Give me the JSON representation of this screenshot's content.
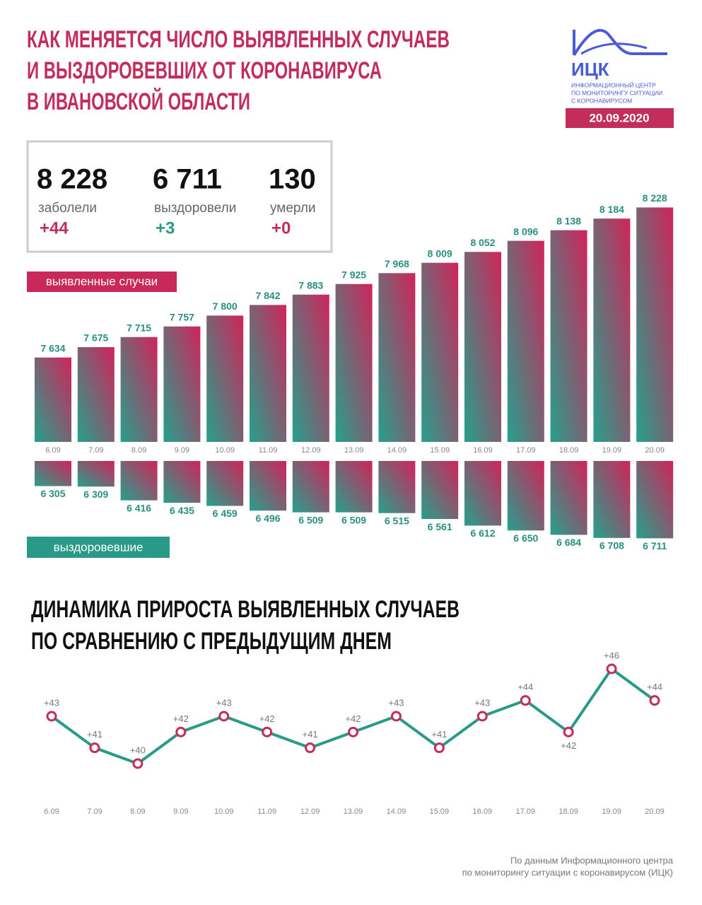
{
  "header": {
    "title": [
      "КАК МЕНЯЕТСЯ ЧИСЛО ВЫЯВЛЕННЫХ СЛУЧАЕВ",
      "И ВЫЗДОРОВЕВШИХ ОТ КОРОНАВИРУСА",
      "В ИВАНОВСКОЙ ОБЛАСТИ"
    ],
    "logo": {
      "name": "ИЦК",
      "lines": [
        "ИНФОРМАЦИОННЫЙ ЦЕНТР",
        "ПО МОНИТОРИНГУ СИТУАЦИИ",
        "С КОРОНАВИРУСОМ"
      ]
    },
    "date": "20.09.2020"
  },
  "summary": [
    {
      "value": "8 228",
      "label": "заболели",
      "change": "+44",
      "color": "#c32d5c"
    },
    {
      "value": "6 711",
      "label": "выздоровели",
      "change": "+3",
      "color": "#2a9a88"
    },
    {
      "value": "130",
      "label": "умерли",
      "change": "+0",
      "color": "#c32d5c"
    }
  ],
  "chart_data": [
    {
      "type": "bar",
      "name": "выявленные случаи",
      "color": "#c8285a",
      "gradient": [
        "#d0245a",
        "#26a08c"
      ],
      "categories": [
        "6.09",
        "7.09",
        "8.09",
        "9.09",
        "10.09",
        "11.09",
        "12.09",
        "13.09",
        "14.09",
        "15.09",
        "16.09",
        "17.09",
        "18.09",
        "19.09",
        "20.09"
      ],
      "values": [
        7634,
        7675,
        7715,
        7757,
        7800,
        7842,
        7883,
        7925,
        7968,
        8009,
        8052,
        8096,
        8138,
        8184,
        8228
      ],
      "value_labels": [
        "7 634",
        "7 675",
        "7 715",
        "7 757",
        "7 800",
        "7 842",
        "7 883",
        "7 925",
        "7 968",
        "8 009",
        "8 052",
        "8 096",
        "8 138",
        "8 184",
        "8 228"
      ],
      "ylim": [
        7300,
        8260
      ]
    },
    {
      "type": "bar",
      "name": "выздоровевшие",
      "color": "#2a9a88",
      "direction": "down",
      "gradient": [
        "#d0245a",
        "#26a08c"
      ],
      "values": [
        6305,
        6309,
        6416,
        6435,
        6459,
        6496,
        6509,
        6509,
        6515,
        6561,
        6612,
        6650,
        6684,
        6708,
        6711
      ],
      "value_labels": [
        "6 305",
        "6 309",
        "6 416",
        "6 435",
        "6 459",
        "6 496",
        "6 509",
        "6 509",
        "6 515",
        "6 561",
        "6 612",
        "6 650",
        "6 684",
        "6 708",
        "6 711"
      ],
      "ylim": [
        6110,
        6720
      ]
    },
    {
      "type": "line",
      "title": [
        "ДИНАМИКА ПРИРОСТА ВЫЯВЛЕННЫХ СЛУЧАЕВ",
        "ПО СРАВНЕНИЮ С ПРЕДЫДУЩИМ ДНЕМ"
      ],
      "color": "#2a9a88",
      "marker_color": "#c32d5c",
      "categories": [
        "6.09",
        "7.09",
        "8.09",
        "9.09",
        "10.09",
        "11.09",
        "12.09",
        "13.09",
        "14.09",
        "15.09",
        "16.09",
        "17.09",
        "18.09",
        "19.09",
        "20.09"
      ],
      "values": [
        43,
        41,
        40,
        42,
        43,
        42,
        41,
        42,
        43,
        41,
        43,
        44,
        42,
        46,
        44
      ],
      "value_labels": [
        "+43",
        "+41",
        "+40",
        "+42",
        "+43",
        "+42",
        "+41",
        "+42",
        "+43",
        "+41",
        "+43",
        "+44",
        "+42",
        "+46",
        "+44"
      ],
      "ylim": [
        40,
        46
      ]
    }
  ],
  "source": [
    "По данным Информационного центра",
    "по мониторингу ситуации с коронавирусом (ИЦК)"
  ]
}
